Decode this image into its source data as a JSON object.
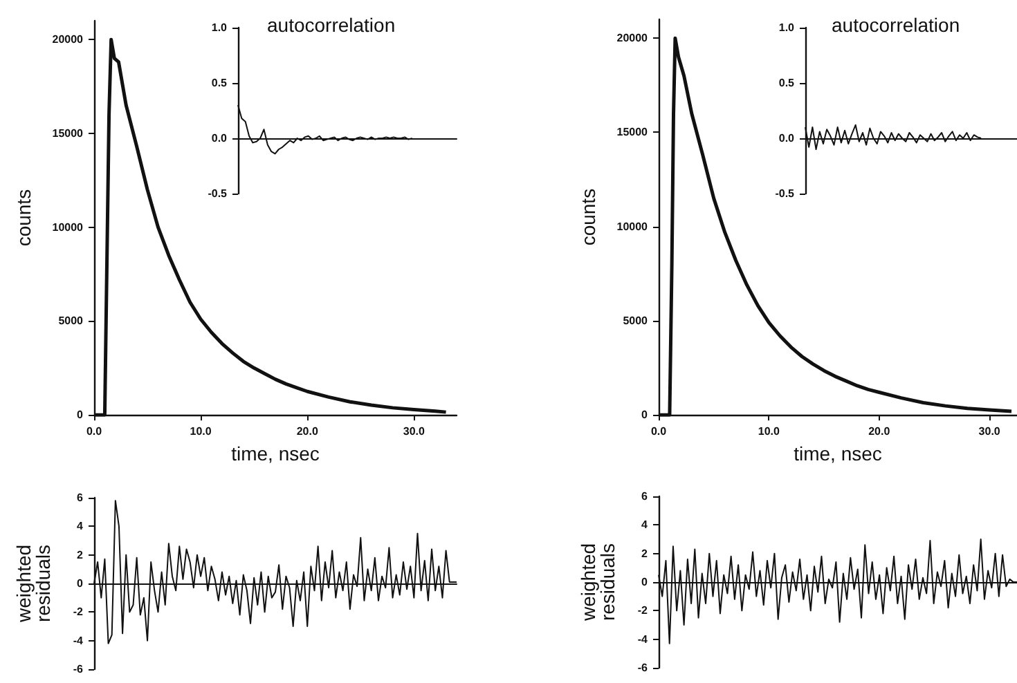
{
  "chart_data": [
    {
      "type": "line",
      "xlabel": "time, nsec",
      "ylabel": "counts",
      "color": "#111111",
      "xlim": [
        0,
        34
      ],
      "xticks": [
        {
          "value": 0,
          "label": "0.0"
        },
        {
          "value": 10,
          "label": "10.0"
        },
        {
          "value": 20,
          "label": "20.0"
        },
        {
          "value": 30,
          "label": "30.0"
        }
      ],
      "ylim": [
        0,
        21000
      ],
      "yticks": [
        0,
        5000,
        10000,
        15000,
        20000
      ],
      "x": [
        0,
        1,
        1.2,
        1.4,
        1.6,
        1.9,
        2.3,
        3,
        4,
        5,
        6,
        7,
        8,
        9,
        10,
        11,
        12,
        13,
        14,
        15,
        16,
        17,
        18,
        19,
        20,
        22,
        24,
        26,
        28,
        30,
        32,
        33
      ],
      "values": [
        0,
        0,
        8000,
        16000,
        20000,
        19000,
        18800,
        16500,
        14300,
        12000,
        10000,
        8500,
        7200,
        6000,
        5100,
        4400,
        3800,
        3300,
        2850,
        2500,
        2200,
        1900,
        1650,
        1450,
        1250,
        950,
        700,
        520,
        380,
        280,
        200,
        150
      ]
    },
    {
      "type": "line",
      "title": "autocorrelation",
      "color": "#111111",
      "tick_labels": "y",
      "ylim": [
        -0.5,
        1.0
      ],
      "yticks": [
        {
          "value": -0.5,
          "label": "-0.5"
        },
        {
          "value": 0,
          "label": "0.0"
        },
        {
          "value": 0.5,
          "label": "0.5"
        },
        {
          "value": 1,
          "label": "1.0"
        }
      ],
      "categories": [
        null,
        null,
        null,
        null,
        null,
        null,
        null,
        null,
        null,
        null,
        null,
        null,
        null,
        null,
        null,
        null,
        null,
        null,
        null,
        null,
        null,
        null,
        null,
        null,
        null,
        null,
        null,
        null,
        null,
        null,
        null,
        null,
        null,
        null,
        null,
        null,
        null,
        null,
        null,
        null,
        null,
        null,
        null,
        null,
        null,
        null,
        null,
        null,
        null,
        null,
        null,
        null,
        null,
        null,
        null,
        null,
        null,
        null,
        null,
        null
      ],
      "values": [
        0.3,
        0.18,
        0.15,
        0.02,
        -0.04,
        -0.03,
        0,
        0.08,
        -0.06,
        -0.12,
        -0.14,
        -0.1,
        -0.08,
        -0.05,
        -0.02,
        -0.04,
        0,
        -0.02,
        0.01,
        0.02,
        -0.01,
        0,
        0.02,
        -0.02,
        -0.01,
        0,
        0.01,
        -0.02,
        0,
        0.01,
        -0.01,
        -0.02,
        0,
        0.01,
        0,
        -0.01,
        0.01,
        -0.01,
        0,
        0,
        0.01,
        0,
        0.01,
        0,
        0,
        0.01,
        -0.01,
        0,
        null,
        null,
        null,
        null,
        null,
        null,
        null,
        null,
        null,
        null,
        null,
        null
      ]
    },
    {
      "type": "line",
      "xlabel": "time, nsec",
      "ylabel": "counts",
      "color": "#111111",
      "xlim": [
        0,
        32.5
      ],
      "xticks": [
        {
          "value": 0,
          "label": "0.0"
        },
        {
          "value": 10,
          "label": "10.0"
        },
        {
          "value": 20,
          "label": "20.0"
        },
        {
          "value": 30,
          "label": "30.0"
        }
      ],
      "ylim": [
        0,
        21000
      ],
      "yticks": [
        0,
        5000,
        10000,
        15000,
        20000
      ],
      "x": [
        0,
        1,
        1.2,
        1.35,
        1.5,
        1.8,
        2.3,
        3,
        4,
        5,
        6,
        7,
        8,
        9,
        10,
        11,
        12,
        13,
        14,
        15,
        16,
        17,
        18,
        19,
        20,
        22,
        24,
        26,
        28,
        30,
        32
      ],
      "values": [
        0,
        0,
        8000,
        16000,
        20000,
        19000,
        18000,
        16000,
        13800,
        11500,
        9700,
        8200,
        6900,
        5800,
        4900,
        4200,
        3600,
        3100,
        2700,
        2350,
        2050,
        1800,
        1550,
        1350,
        1200,
        900,
        650,
        480,
        350,
        260,
        190
      ]
    },
    {
      "type": "line",
      "title": "autocorrelation",
      "color": "#111111",
      "tick_labels": "y",
      "ylim": [
        -0.5,
        1.0
      ],
      "yticks": [
        {
          "value": -0.5,
          "label": "-0.5"
        },
        {
          "value": 0,
          "label": "0.0"
        },
        {
          "value": 0.5,
          "label": "0.5"
        },
        {
          "value": 1,
          "label": "1.0"
        }
      ],
      "categories": [
        null,
        null,
        null,
        null,
        null,
        null,
        null,
        null,
        null,
        null,
        null,
        null,
        null,
        null,
        null,
        null,
        null,
        null,
        null,
        null,
        null,
        null,
        null,
        null,
        null,
        null,
        null,
        null,
        null,
        null,
        null,
        null,
        null,
        null,
        null,
        null,
        null,
        null,
        null,
        null,
        null,
        null,
        null,
        null,
        null,
        null,
        null,
        null,
        null,
        null,
        null,
        null,
        null,
        null,
        null,
        null,
        null,
        null,
        null,
        null
      ],
      "values": [
        0.1,
        -0.08,
        0.1,
        -0.1,
        0.06,
        -0.05,
        0.08,
        0.02,
        -0.06,
        0.1,
        -0.04,
        0.07,
        -0.05,
        0.04,
        0.12,
        -0.03,
        0.05,
        -0.06,
        0.09,
        0,
        -0.05,
        0.06,
        0.02,
        -0.04,
        0.05,
        -0.02,
        0.04,
        0,
        -0.03,
        0.05,
        0.01,
        -0.04,
        0.03,
        0,
        -0.03,
        0.04,
        -0.02,
        0.01,
        0.05,
        -0.03,
        0.02,
        0.06,
        -0.02,
        0.03,
        0,
        0.05,
        -0.02,
        0.03,
        0.01,
        0,
        null,
        null,
        null,
        null,
        null,
        null,
        null,
        null,
        null,
        null
      ]
    },
    {
      "type": "line",
      "ylabel": "weighted residuals",
      "color": "#111111",
      "tick_labels": "y",
      "ylim": [
        -6,
        6
      ],
      "yticks": [
        -6,
        -4,
        -2,
        0,
        2,
        4,
        6
      ],
      "categories": [
        null,
        null,
        null,
        null,
        null,
        null,
        null,
        null,
        null,
        null,
        null,
        null,
        null,
        null,
        null,
        null,
        null,
        null,
        null,
        null,
        null,
        null,
        null,
        null,
        null,
        null,
        null,
        null,
        null,
        null,
        null,
        null,
        null,
        null,
        null,
        null,
        null,
        null,
        null,
        null,
        null,
        null,
        null,
        null,
        null,
        null,
        null,
        null,
        null,
        null,
        null,
        null,
        null,
        null,
        null,
        null,
        null,
        null,
        null,
        null,
        null,
        null,
        null,
        null,
        null,
        null,
        null,
        null,
        null,
        null,
        null,
        null,
        null,
        null,
        null,
        null,
        null,
        null,
        null,
        null,
        null,
        null,
        null,
        null,
        null,
        null,
        null,
        null,
        null,
        null,
        null,
        null,
        null,
        null,
        null,
        null,
        null,
        null,
        null,
        null,
        null,
        null,
        null
      ],
      "values": [
        0,
        1.5,
        -1,
        1.7,
        -4.2,
        -3.6,
        5.8,
        4,
        -3.5,
        2,
        -2,
        -1.5,
        1.8,
        -2.2,
        -1,
        -4,
        1.5,
        -0.5,
        -2,
        0.8,
        -1.5,
        2.8,
        0.5,
        -0.5,
        2.6,
        0.3,
        2.4,
        1.5,
        -0.3,
        2,
        0.5,
        1.8,
        -0.5,
        1.2,
        0.3,
        -1.2,
        0.8,
        -0.8,
        0.5,
        -1.4,
        0.2,
        -2.2,
        0.6,
        -0.5,
        -2.8,
        0.4,
        -1.5,
        0.8,
        -2,
        0.5,
        -1,
        -0.6,
        1.3,
        -1.8,
        0.5,
        -0.3,
        -3,
        0.2,
        -1.2,
        0.8,
        -3,
        1.2,
        -0.5,
        2.6,
        -1.2,
        1.5,
        -0.3,
        2.3,
        -1,
        0.8,
        -0.5,
        1.5,
        -1.8,
        0.6,
        -0.2,
        3.2,
        -1.2,
        1,
        -0.5,
        1.8,
        -1.2,
        0.5,
        -0.3,
        2.5,
        -1,
        0.6,
        -0.8,
        1.5,
        -0.4,
        1.2,
        -1,
        3.5,
        -0.5,
        1.6,
        -1.2,
        2.4,
        -0.5,
        1.2,
        -1,
        2.3,
        0.1,
        0.1,
        0.1
      ]
    },
    {
      "type": "line",
      "ylabel": "weighted residuals",
      "color": "#111111",
      "tick_labels": "y",
      "ylim": [
        -6,
        6
      ],
      "yticks": [
        -6,
        -4,
        -2,
        0,
        2,
        4,
        6
      ],
      "categories": [
        null,
        null,
        null,
        null,
        null,
        null,
        null,
        null,
        null,
        null,
        null,
        null,
        null,
        null,
        null,
        null,
        null,
        null,
        null,
        null,
        null,
        null,
        null,
        null,
        null,
        null,
        null,
        null,
        null,
        null,
        null,
        null,
        null,
        null,
        null,
        null,
        null,
        null,
        null,
        null,
        null,
        null,
        null,
        null,
        null,
        null,
        null,
        null,
        null,
        null,
        null,
        null,
        null,
        null,
        null,
        null,
        null,
        null,
        null,
        null,
        null,
        null,
        null,
        null,
        null,
        null,
        null,
        null,
        null,
        null,
        null,
        null,
        null,
        null,
        null,
        null,
        null,
        null,
        null,
        null,
        null,
        null,
        null,
        null,
        null,
        null,
        null,
        null,
        null,
        null,
        null,
        null,
        null,
        null,
        null,
        null,
        null,
        null,
        null,
        null
      ],
      "values": [
        0.5,
        -1,
        1.5,
        -4.3,
        2.5,
        -2,
        0.8,
        -3,
        1.6,
        -1.5,
        2.3,
        -2.5,
        0.6,
        -1.5,
        2,
        -1,
        1.5,
        -2.2,
        0.5,
        -0.8,
        1.8,
        -1.2,
        1.2,
        -2,
        0.5,
        -0.5,
        2.1,
        -1,
        0.8,
        -1.6,
        1.5,
        -0.4,
        2,
        -2.6,
        0.3,
        1.2,
        -1.4,
        0.7,
        -0.6,
        1.6,
        -1.2,
        0.5,
        -2,
        1.1,
        -0.7,
        1.8,
        -1.5,
        0.2,
        -0.4,
        1.4,
        -2.8,
        0.6,
        -1.2,
        1.7,
        -0.5,
        0.9,
        -2.5,
        2.6,
        -0.8,
        1.4,
        -1.2,
        0.5,
        -2.2,
        1,
        -0.6,
        1.8,
        -1.5,
        0.4,
        -2.6,
        1.2,
        -0.5,
        1.6,
        -1.2,
        0.3,
        -0.8,
        2.9,
        -1.5,
        0.7,
        -0.3,
        1.5,
        -1.8,
        0.6,
        -1,
        1.9,
        -0.8,
        0.4,
        -1.5,
        1.2,
        -0.6,
        3,
        -1.2,
        0.8,
        -0.4,
        2,
        -1,
        1.9,
        -0.3,
        0.2,
        0,
        0
      ]
    }
  ]
}
